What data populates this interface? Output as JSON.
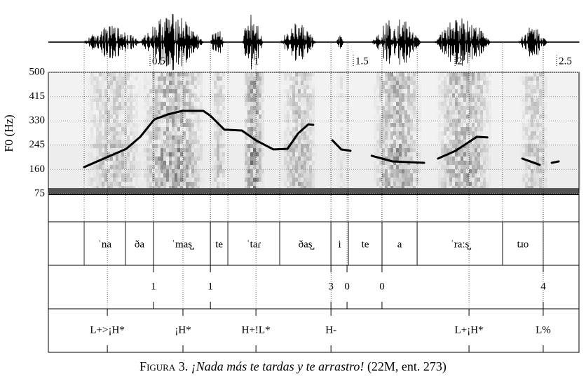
{
  "chart_data": {
    "type": "line",
    "ylabel": "F0 (Hz)",
    "xlim": [
      0,
      2.61
    ],
    "xticks": [
      0.5,
      1,
      1.5,
      2,
      2.5
    ],
    "ylim": [
      75,
      500
    ],
    "yticks": [
      75,
      160,
      245,
      330,
      415,
      500
    ],
    "series": [
      {
        "color": "#000000",
        "x": [
          0.176,
          0.279,
          0.383,
          0.452,
          0.521,
          0.59,
          0.659,
          0.762,
          0.797,
          0.866,
          0.952,
          1.021,
          1.107,
          1.176,
          1.228,
          1.279,
          1.303,
          null,
          1.397,
          1.441,
          1.486,
          null,
          1.59,
          1.693,
          1.848,
          null,
          1.917,
          2.003,
          2.107,
          2.159,
          null,
          2.331,
          2.417,
          null,
          2.476,
          2.51
        ],
        "values": [
          168,
          200,
          232,
          274,
          335,
          353,
          365,
          365,
          348,
          299,
          296,
          262,
          230,
          232,
          286,
          318,
          316,
          null,
          262,
          230,
          225,
          null,
          208,
          188,
          183,
          null,
          198,
          225,
          274,
          272,
          null,
          198,
          176,
          null,
          183,
          188
        ]
      }
    ]
  },
  "tiers": {
    "syllables": [
      {
        "text": "ˈna",
        "start": 0.176,
        "end": 0.379
      },
      {
        "text": "ða",
        "start": 0.379,
        "end": 0.517
      },
      {
        "text": "ˈmas̺",
        "start": 0.517,
        "end": 0.797
      },
      {
        "text": "te",
        "start": 0.797,
        "end": 0.883
      },
      {
        "text": "ˈtaɾ",
        "start": 0.883,
        "end": 1.138
      },
      {
        "text": "ðas̺",
        "start": 1.138,
        "end": 1.39
      },
      {
        "text": "i",
        "start": 1.39,
        "end": 1.476
      },
      {
        "text": "te",
        "start": 1.476,
        "end": 1.641
      },
      {
        "text": "a",
        "start": 1.641,
        "end": 1.814
      },
      {
        "text": "ˈraːs̺",
        "start": 1.814,
        "end": 2.234
      },
      {
        "text": "tɹo",
        "start": 2.234,
        "end": 2.434
      }
    ],
    "breaks": [
      {
        "time": 0.517,
        "label": "1"
      },
      {
        "time": 0.797,
        "label": "1"
      },
      {
        "time": 1.39,
        "label": "3"
      },
      {
        "time": 1.469,
        "label": "0"
      },
      {
        "time": 1.641,
        "label": "0"
      },
      {
        "time": 2.434,
        "label": "4"
      }
    ],
    "tones": [
      {
        "time": 0.29,
        "label": "L+>¡H*"
      },
      {
        "time": 0.662,
        "label": "¡H*"
      },
      {
        "time": 1.021,
        "label": "H+!L*"
      },
      {
        "time": 1.39,
        "label": "H-"
      },
      {
        "time": 2.069,
        "label": "L+¡H*"
      },
      {
        "time": 2.434,
        "label": "L%"
      }
    ]
  },
  "caption": {
    "label": "Figura 3.",
    "sentence": "¡Nada más te tardas y te arrastro!",
    "source": "(22M, ent. 273)"
  }
}
